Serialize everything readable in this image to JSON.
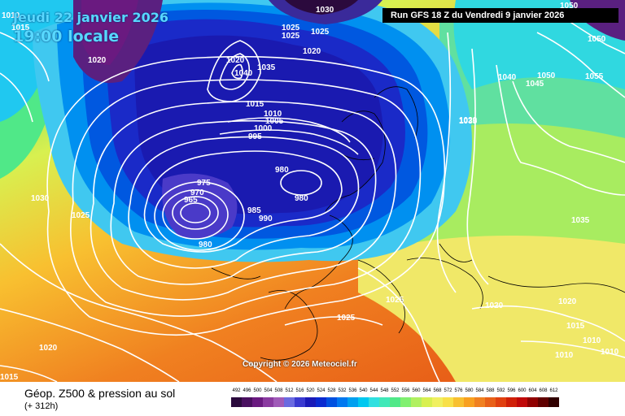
{
  "header": {
    "date": "Jeudi 22 janvier 2026",
    "time": "19:00 locale",
    "run": "Run GFS 18 Z du Vendredi 9 janvier 2026"
  },
  "copyright": "Copyright © 2026 Meteociel.fr",
  "footer": {
    "title": "Géop. Z500 & pression au sol",
    "lead": "(+ 312h)"
  },
  "legend": {
    "values": [
      "492",
      "496",
      "500",
      "504",
      "508",
      "512",
      "516",
      "520",
      "524",
      "528",
      "532",
      "536",
      "540",
      "544",
      "548",
      "552",
      "556",
      "560",
      "564",
      "568",
      "572",
      "576",
      "580",
      "584",
      "588",
      "592",
      "596",
      "600",
      "604",
      "608",
      "612"
    ],
    "colors": [
      "#2b0a3d",
      "#4a1060",
      "#6a1a80",
      "#8a3aa0",
      "#a05ab8",
      "#6a6ae0",
      "#3a3ad0",
      "#1a1ab8",
      "#0a2ad0",
      "#0050e0",
      "#0078f0",
      "#00a0f0",
      "#00c8f0",
      "#30e0e0",
      "#40e8b8",
      "#50e888",
      "#80f070",
      "#b0f060",
      "#d8f050",
      "#f0f060",
      "#f8e048",
      "#f8c030",
      "#f8a020",
      "#f08020",
      "#e86018",
      "#e04010",
      "#d02008",
      "#c00808",
      "#900000",
      "#600000",
      "#300000"
    ]
  },
  "pressure_labels": [
    "1010",
    "1015",
    "1030",
    "1025",
    "1020",
    "1050",
    "1025",
    "1020",
    "1020",
    "1040",
    "1035",
    "1015",
    "1010",
    "1005",
    "1000",
    "995",
    "1035",
    "1040",
    "1045",
    "1050",
    "1055",
    "1030",
    "1020",
    "1025",
    "975",
    "970",
    "965",
    "980",
    "985",
    "990",
    "980",
    "980",
    "1035",
    "1025",
    "1025",
    "1020",
    "1020",
    "1015",
    "1010",
    "1010",
    "1010",
    "1020",
    "1015",
    "1050",
    "1025"
  ]
}
